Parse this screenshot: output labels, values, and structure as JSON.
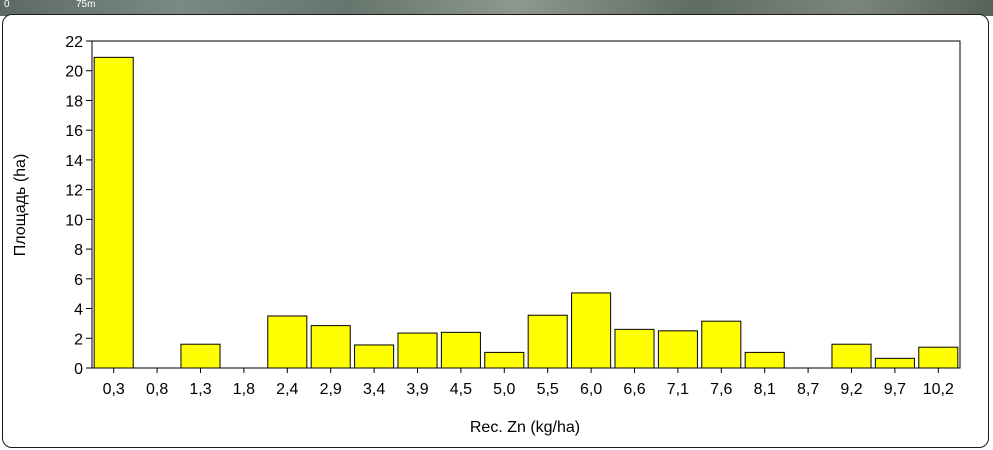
{
  "map_strip": {
    "scale_zero": "0",
    "scale_unit": "75m"
  },
  "chart_data": {
    "type": "bar",
    "categories": [
      "0,3",
      "0,8",
      "1,3",
      "1,8",
      "2,4",
      "2,9",
      "3,4",
      "3,9",
      "4,5",
      "5,0",
      "5,5",
      "6,0",
      "6,6",
      "7,1",
      "7,6",
      "8,1",
      "8,7",
      "9,2",
      "9,7",
      "10,2"
    ],
    "values": [
      20.9,
      0,
      1.6,
      0,
      3.5,
      2.85,
      1.55,
      2.35,
      2.4,
      1.05,
      3.55,
      5.05,
      2.6,
      2.5,
      3.15,
      1.05,
      0,
      1.6,
      0.65,
      1.4
    ],
    "xlabel": "Rec. Zn (kg/ha)",
    "ylabel": "Площадь (ha)",
    "ylim": [
      0,
      22
    ],
    "yticks": [
      0,
      2,
      4,
      6,
      8,
      10,
      12,
      14,
      16,
      18,
      20,
      22
    ],
    "bar_color": "#ffff00",
    "bar_stroke": "#000000"
  }
}
